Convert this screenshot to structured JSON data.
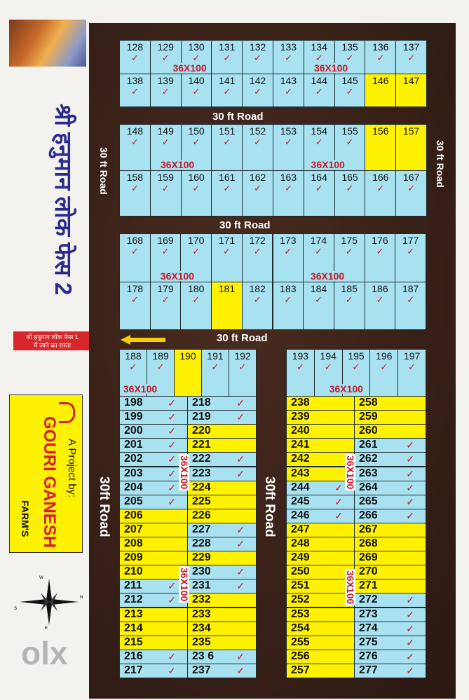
{
  "title": "श्री हनुमान लोक फेस 2",
  "road_label": "30 ft Road",
  "road_label_vertical": "30 ft Road",
  "road_label_long": "30ft Road",
  "plot_size": "36X100",
  "direction_sign": {
    "line1": "श्री हनुमान लोक फेस 1",
    "line2": "में जाने का रास्ता"
  },
  "developer": {
    "prefix": "A Project by:",
    "name": "GOURI GANESH",
    "suffix": "FARM'S"
  },
  "compass": {
    "top": "W",
    "right": "N",
    "bottom": "E",
    "left": "S"
  },
  "watermark": "olx",
  "colors": {
    "sold": "#a8e2f0",
    "available": "#fff200",
    "check": "#c4182a",
    "road": "#3a2218"
  },
  "legend_icons": {
    "sold": "red-checkmark-icon",
    "direction": "yellow-arrow-left-icon"
  },
  "blocks": [
    {
      "rows": [
        [
          "128",
          "129",
          "130",
          "131",
          "132",
          "133",
          "134",
          "135",
          "136",
          "137"
        ],
        [
          "138",
          "139",
          "140",
          "141",
          "142",
          "143",
          "144",
          "145",
          "146",
          "147"
        ]
      ],
      "available": [
        "146",
        "147"
      ]
    },
    {
      "rows": [
        [
          "148",
          "149",
          "150",
          "151",
          "152",
          "153",
          "154",
          "155",
          "156",
          "157"
        ],
        [
          "158",
          "159",
          "160",
          "161",
          "162",
          "163",
          "164",
          "165",
          "166",
          "167"
        ]
      ],
      "available": [
        "156",
        "157"
      ]
    },
    {
      "rows": [
        [
          "168",
          "169",
          "170",
          "171",
          "172",
          "173",
          "174",
          "175",
          "176",
          "177"
        ],
        [
          "178",
          "179",
          "180",
          "181",
          "182",
          "183",
          "184",
          "185",
          "186",
          "187"
        ]
      ],
      "available": [
        "181"
      ]
    },
    {
      "rows": [
        [
          "188",
          "189",
          "190",
          "191",
          "192"
        ]
      ],
      "available": [
        "190"
      ]
    },
    {
      "rows": [
        [
          "193",
          "194",
          "195",
          "196",
          "197"
        ]
      ],
      "available": []
    }
  ],
  "lists": [
    {
      "plots": [
        "198",
        "199",
        "200",
        "201",
        "202",
        "203",
        "204",
        "205",
        "206",
        "207",
        "208",
        "209",
        "210",
        "211",
        "212",
        "213",
        "214",
        "215",
        "216",
        "217"
      ],
      "available": [
        "206",
        "207",
        "208",
        "209",
        "210",
        "213",
        "214",
        "215"
      ]
    },
    {
      "plots": [
        "218",
        "219",
        "220",
        "221",
        "222",
        "223",
        "224",
        "225",
        "226",
        "227",
        "228",
        "229",
        "230",
        "231",
        "232",
        "233",
        "234",
        "235",
        "23 6",
        "237"
      ],
      "available": [
        "220",
        "221",
        "224",
        "225",
        "226",
        "229",
        "232",
        "233",
        "234",
        "235"
      ]
    },
    {
      "plots": [
        "238",
        "239",
        "240",
        "241",
        "242",
        "243",
        "244",
        "245",
        "246",
        "247",
        "248",
        "249",
        "250",
        "251",
        "252",
        "253",
        "254",
        "255",
        "256",
        "257"
      ],
      "available": [
        "238",
        "239",
        "240",
        "241",
        "242",
        "243",
        "247",
        "248",
        "249",
        "250",
        "251",
        "252",
        "253",
        "254",
        "255",
        "256",
        "257"
      ]
    },
    {
      "plots": [
        "258",
        "259",
        "260",
        "261",
        "262",
        "263",
        "264",
        "265",
        "266",
        "267",
        "268",
        "269",
        "270",
        "271",
        "272",
        "273",
        "274",
        "275",
        "276",
        "277"
      ],
      "available": [
        "258",
        "259",
        "260",
        "267",
        "268",
        "269",
        "270",
        "271"
      ]
    }
  ],
  "check_mark": "✓"
}
